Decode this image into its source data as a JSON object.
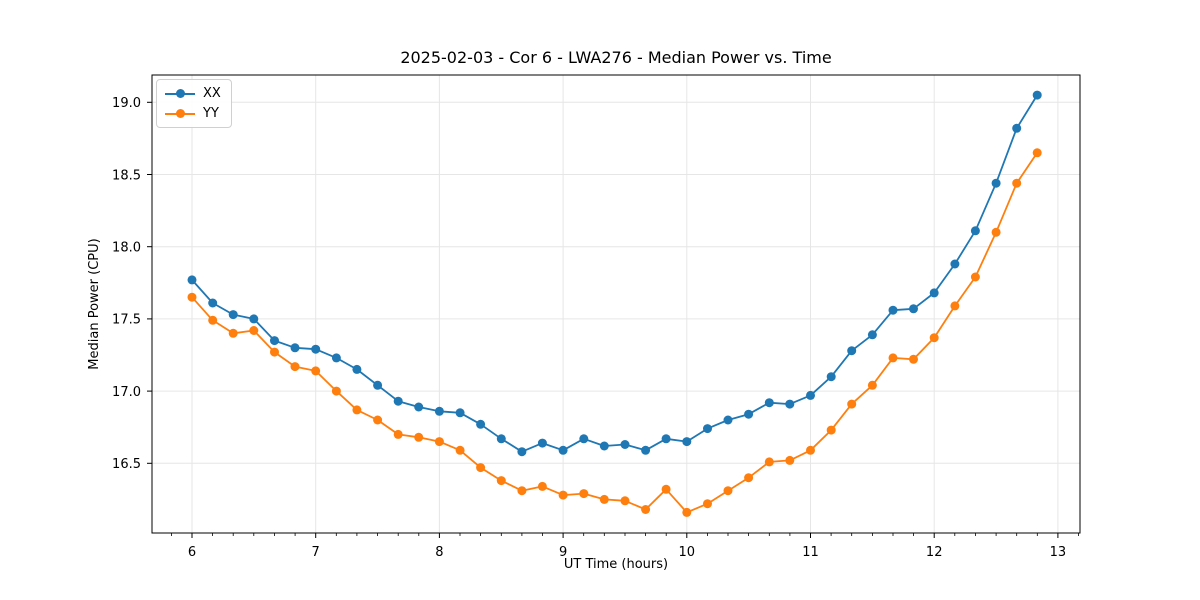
{
  "chart_data": {
    "type": "line",
    "title": "2025-02-03 - Cor 6 - LWA276 - Median Power vs. Time",
    "xlabel": "UT Time (hours)",
    "ylabel": "Median Power (CPU)",
    "xlim": [
      5.68,
      13.18
    ],
    "ylim": [
      16.02,
      19.19
    ],
    "x_ticks": [
      6,
      7,
      8,
      9,
      10,
      11,
      12,
      13
    ],
    "y_ticks": [
      16.5,
      17.0,
      17.5,
      18.0,
      18.5,
      19.0
    ],
    "x_minor_tick_interval": 0.1667,
    "grid": true,
    "legend_position": "upper left",
    "grid_color": "#e6e6e6",
    "spine_color": "#000000",
    "x": [
      6.0,
      6.167,
      6.333,
      6.5,
      6.667,
      6.833,
      7.0,
      7.167,
      7.333,
      7.5,
      7.667,
      7.833,
      8.0,
      8.167,
      8.333,
      8.5,
      8.667,
      8.833,
      9.0,
      9.167,
      9.333,
      9.5,
      9.667,
      9.833,
      10.0,
      10.167,
      10.333,
      10.5,
      10.667,
      10.833,
      11.0,
      11.167,
      11.333,
      11.5,
      11.667,
      11.833,
      12.0,
      12.167,
      12.333,
      12.5,
      12.667,
      12.833
    ],
    "series": [
      {
        "name": "XX",
        "color": "#1f77b4",
        "values": [
          17.77,
          17.61,
          17.53,
          17.5,
          17.35,
          17.3,
          17.29,
          17.23,
          17.15,
          17.04,
          16.93,
          16.89,
          16.86,
          16.85,
          16.77,
          16.67,
          16.58,
          16.64,
          16.59,
          16.67,
          16.62,
          16.63,
          16.59,
          16.67,
          16.65,
          16.74,
          16.8,
          16.84,
          16.92,
          16.91,
          16.97,
          17.1,
          17.28,
          17.39,
          17.56,
          17.57,
          17.68,
          17.88,
          18.11,
          18.44,
          18.82,
          19.05
        ]
      },
      {
        "name": "YY",
        "color": "#ff7f0e",
        "values": [
          17.65,
          17.49,
          17.4,
          17.42,
          17.27,
          17.17,
          17.14,
          17.0,
          16.87,
          16.8,
          16.7,
          16.68,
          16.65,
          16.59,
          16.47,
          16.38,
          16.31,
          16.34,
          16.28,
          16.29,
          16.25,
          16.24,
          16.18,
          16.32,
          16.16,
          16.22,
          16.31,
          16.4,
          16.51,
          16.52,
          16.59,
          16.73,
          16.91,
          17.04,
          17.23,
          17.22,
          17.37,
          17.59,
          17.79,
          18.1,
          18.44,
          18.65
        ]
      }
    ]
  }
}
